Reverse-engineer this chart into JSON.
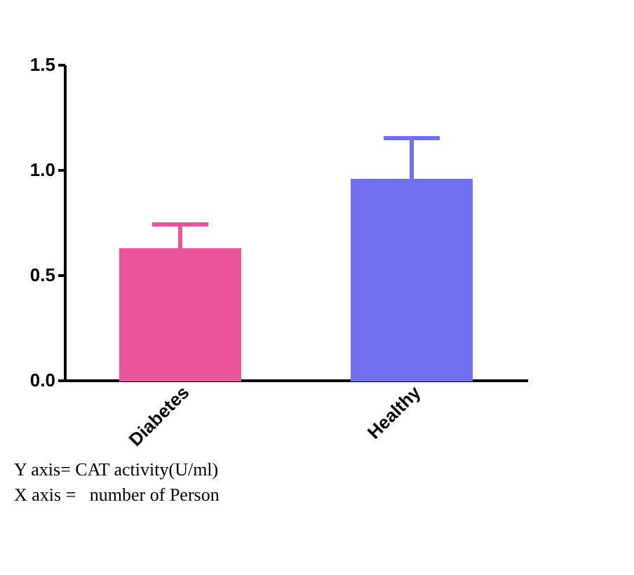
{
  "chart_data": {
    "type": "bar",
    "categories": [
      "Diabetes",
      "Healthy"
    ],
    "values": [
      0.62,
      0.95
    ],
    "colors": [
      "#e8559a",
      "#7070f0"
    ],
    "errors": [
      [
        0.62,
        0.74
      ],
      [
        0.95,
        1.15
      ]
    ],
    "ylim": [
      0,
      1.5
    ],
    "yticks": [
      {
        "value": 0,
        "label": "0.0"
      },
      0.5,
      {
        "value": 1,
        "label": "1.0"
      },
      1.5
    ],
    "grid": false,
    "annotations": [
      "Y axis= CAT activity(U/ml)",
      "X axis =   number of Person"
    ]
  }
}
